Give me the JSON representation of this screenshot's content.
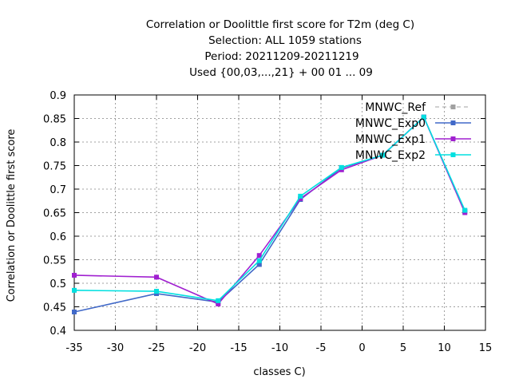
{
  "chart_data": {
    "type": "line",
    "title_lines": [
      "Correlation or Doolittle first score  for T2m (deg C)",
      "Selection: ALL    1059 stations",
      "Period: 20211209-20211219",
      "Used {00,03,...,21} + 00 01 ... 09"
    ],
    "xlabel": "classes C)",
    "ylabel": "Correlation or Doolittle first score",
    "xlim": [
      -35,
      15
    ],
    "ylim": [
      0.4,
      0.9
    ],
    "xticks": [
      -35,
      -30,
      -25,
      -20,
      -15,
      -10,
      -5,
      0,
      5,
      10,
      15
    ],
    "xtick_labels": [
      "-35",
      "-30",
      "-25",
      "-20",
      "-15",
      "-10",
      "-5",
      "0",
      "5",
      "10",
      "15"
    ],
    "yticks": [
      0.4,
      0.45,
      0.5,
      0.55,
      0.6,
      0.65,
      0.7,
      0.75,
      0.8,
      0.85,
      0.9
    ],
    "ytick_labels": [
      "0.4",
      "0.45",
      "0.5",
      "0.55",
      "0.6",
      "0.65",
      "0.7",
      "0.75",
      "0.8",
      "0.85",
      "0.9"
    ],
    "grid": true,
    "legend_position": "top-right",
    "x": [
      -35,
      -25,
      -17.5,
      -12.5,
      -7.5,
      -2.5,
      2.5,
      7.5,
      12.5
    ],
    "series": [
      {
        "name": "MNWC_Ref",
        "color": "#a0a0a0",
        "dashed": true,
        "values": [
          0.439,
          0.478,
          0.46,
          0.54,
          0.678,
          0.745,
          0.772,
          0.853,
          0.653
        ]
      },
      {
        "name": "MNWC_Exp0",
        "color": "#4169c8",
        "dashed": false,
        "values": [
          0.439,
          0.478,
          0.46,
          0.54,
          0.678,
          0.745,
          0.772,
          0.853,
          0.653
        ]
      },
      {
        "name": "MNWC_Exp1",
        "color": "#a020d0",
        "dashed": false,
        "values": [
          0.517,
          0.513,
          0.456,
          0.559,
          0.68,
          0.741,
          0.772,
          0.853,
          0.65
        ]
      },
      {
        "name": "MNWC_Exp2",
        "color": "#00e0e0",
        "dashed": false,
        "values": [
          0.485,
          0.483,
          0.463,
          0.548,
          0.685,
          0.746,
          0.772,
          0.853,
          0.655
        ]
      }
    ]
  }
}
